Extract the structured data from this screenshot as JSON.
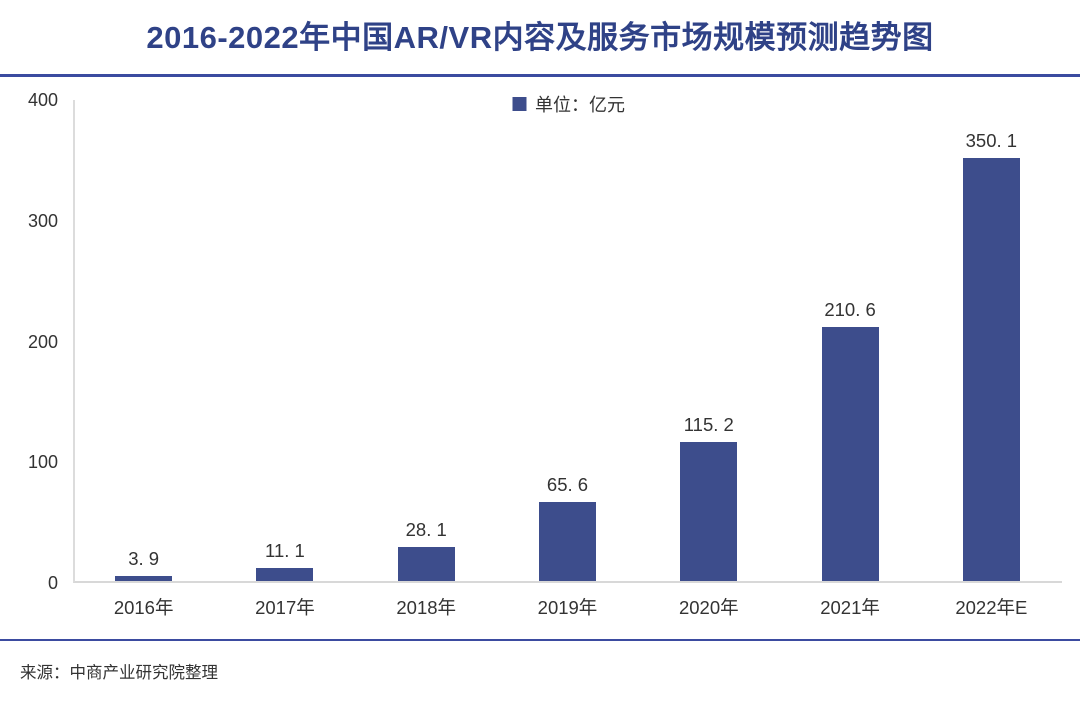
{
  "header": {
    "title": "2016-2022年中国AR/VR内容及服务市场规模预测趋势图",
    "title_color": "#2F4287",
    "divider_color": "#3B4BA0"
  },
  "legend": {
    "label": "单位：亿元",
    "marker_color": "#3D4D8C"
  },
  "footer": {
    "divider_color": "#3B4BA0",
    "source": "来源：中商产业研究院整理"
  },
  "chart_data": {
    "type": "bar",
    "title": "2016-2022年中国AR/VR内容及服务市场规模预测趋势图",
    "categories": [
      "2016年",
      "2017年",
      "2018年",
      "2019年",
      "2020年",
      "2021年",
      "2022年E"
    ],
    "values": [
      3.9,
      11.1,
      28.1,
      65.6,
      115.2,
      210.6,
      350.1
    ],
    "value_labels": [
      "3. 9",
      "11. 1",
      "28. 1",
      "65. 6",
      "115. 2",
      "210. 6",
      "350. 1"
    ],
    "legend": "单位：亿元",
    "legend_position": "top-center",
    "xlabel": "",
    "ylabel": "",
    "ylim": [
      0,
      400
    ],
    "yticks": [
      0,
      100,
      200,
      300,
      400
    ],
    "grid": false,
    "bar_color": "#3D4D8C",
    "source": "来源：中商产业研究院整理"
  }
}
